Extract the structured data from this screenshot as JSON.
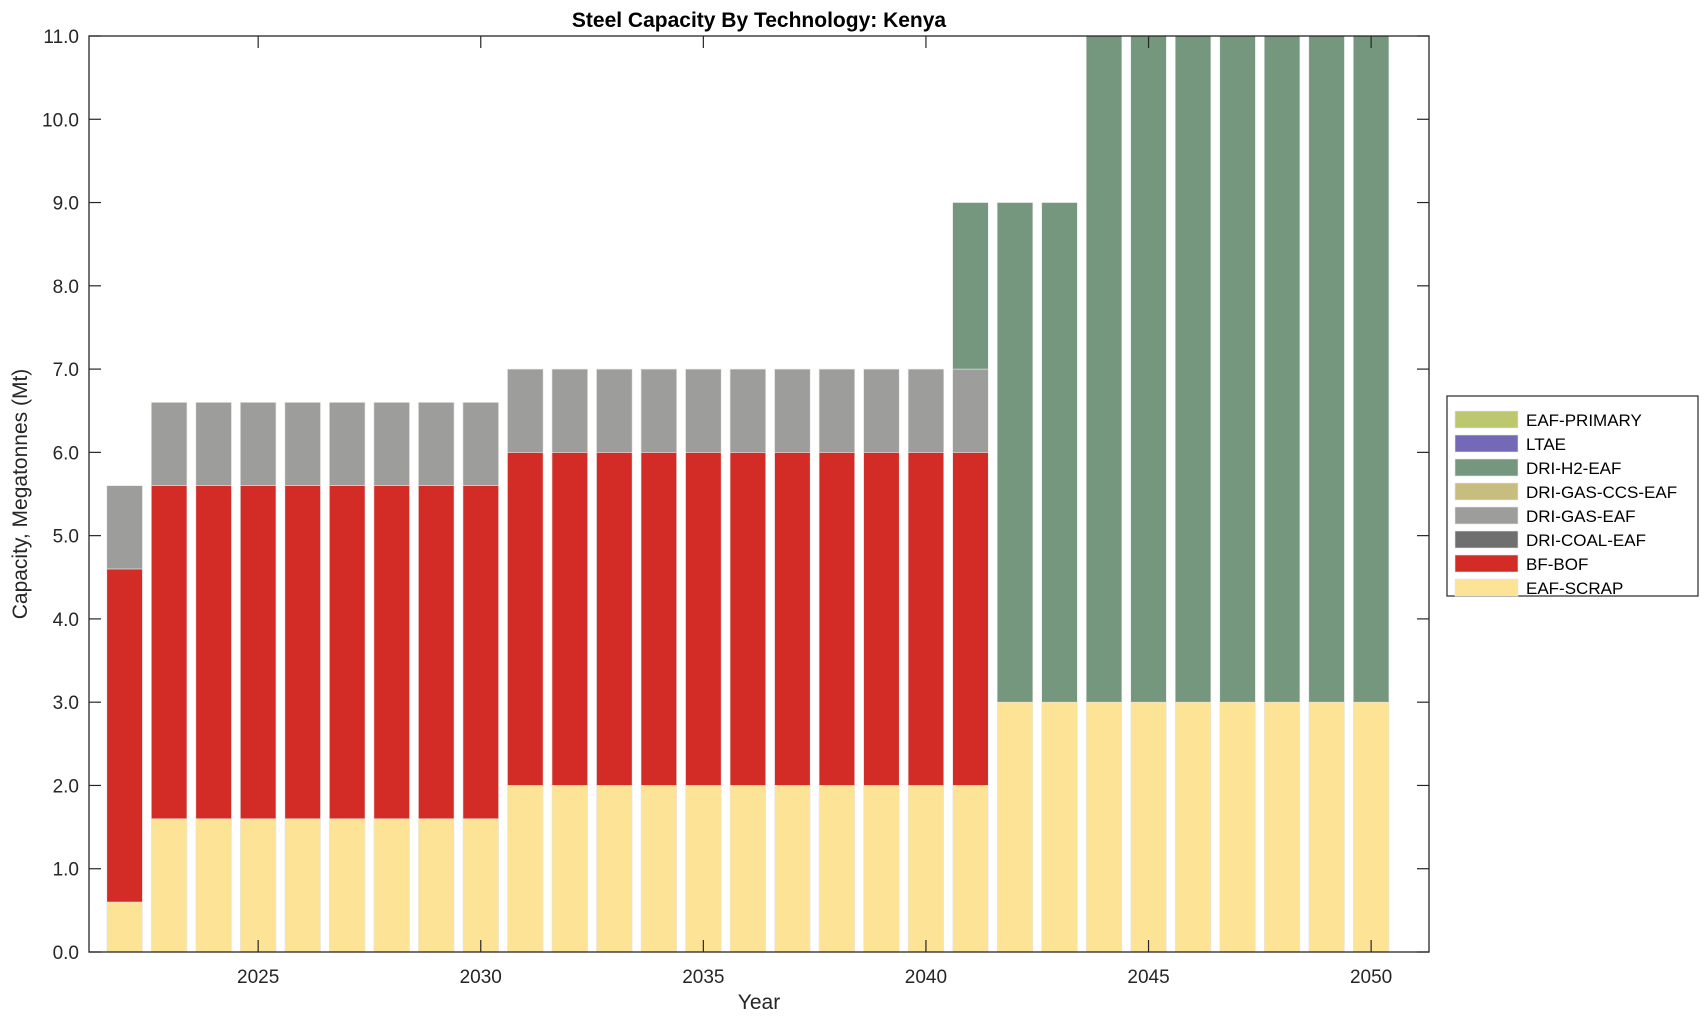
{
  "chart_data": {
    "type": "bar",
    "stacked": true,
    "title": "Steel Capacity By Technology: Kenya",
    "xlabel": "Year",
    "ylabel": "Capacity, Megatonnes (Mt)",
    "ylim": [
      0,
      11
    ],
    "xlim": [
      2021.2,
      2051.3
    ],
    "yticks": [
      "0.0",
      "1.0",
      "2.0",
      "3.0",
      "4.0",
      "5.0",
      "6.0",
      "7.0",
      "8.0",
      "9.0",
      "10.0",
      "11.0"
    ],
    "xticks": [
      "2025",
      "2030",
      "2035",
      "2040",
      "2045",
      "2050"
    ],
    "grid": false,
    "legend_position": "right",
    "x": [
      2022,
      2023,
      2024,
      2025,
      2026,
      2027,
      2028,
      2029,
      2030,
      2031,
      2032,
      2033,
      2034,
      2035,
      2036,
      2037,
      2038,
      2039,
      2040,
      2041,
      2042,
      2043,
      2044,
      2045,
      2046,
      2047,
      2048,
      2049,
      2050
    ],
    "series": [
      {
        "name": "EAF-SCRAP",
        "color": "#FDE395",
        "values": [
          0.6,
          1.6,
          1.6,
          1.6,
          1.6,
          1.6,
          1.6,
          1.6,
          1.6,
          2,
          2,
          2,
          2,
          2,
          2,
          2,
          2,
          2,
          2,
          2,
          3,
          3,
          3,
          3,
          3,
          3,
          3,
          3,
          3
        ]
      },
      {
        "name": "BF-BOF",
        "color": "#D32B25",
        "values": [
          4,
          4,
          4,
          4,
          4,
          4,
          4,
          4,
          4,
          4,
          4,
          4,
          4,
          4,
          4,
          4,
          4,
          4,
          4,
          4,
          0,
          0,
          0,
          0,
          0,
          0,
          0,
          0,
          0
        ]
      },
      {
        "name": "DRI-COAL-EAF",
        "color": "#6F6F6F",
        "values": [
          0,
          0,
          0,
          0,
          0,
          0,
          0,
          0,
          0,
          0,
          0,
          0,
          0,
          0,
          0,
          0,
          0,
          0,
          0,
          0,
          0,
          0,
          0,
          0,
          0,
          0,
          0,
          0,
          0
        ]
      },
      {
        "name": "DRI-GAS-EAF",
        "color": "#9D9D9B",
        "values": [
          1,
          1,
          1,
          1,
          1,
          1,
          1,
          1,
          1,
          1,
          1,
          1,
          1,
          1,
          1,
          1,
          1,
          1,
          1,
          1,
          0,
          0,
          0,
          0,
          0,
          0,
          0,
          0,
          0
        ]
      },
      {
        "name": "DRI-GAS-CCS-EAF",
        "color": "#C6BD7E",
        "values": [
          0,
          0,
          0,
          0,
          0,
          0,
          0,
          0,
          0,
          0,
          0,
          0,
          0,
          0,
          0,
          0,
          0,
          0,
          0,
          0,
          0,
          0,
          0,
          0,
          0,
          0,
          0,
          0,
          0
        ]
      },
      {
        "name": "DRI-H2-EAF",
        "color": "#75977D",
        "values": [
          0,
          0,
          0,
          0,
          0,
          0,
          0,
          0,
          0,
          0,
          0,
          0,
          0,
          0,
          0,
          0,
          0,
          0,
          0,
          2,
          6,
          6,
          8,
          8,
          8,
          8,
          8,
          8,
          8
        ]
      },
      {
        "name": "LTAE",
        "color": "#7369B7",
        "values": [
          0,
          0,
          0,
          0,
          0,
          0,
          0,
          0,
          0,
          0,
          0,
          0,
          0,
          0,
          0,
          0,
          0,
          0,
          0,
          0,
          0,
          0,
          0,
          0,
          0,
          0,
          0,
          0,
          0
        ]
      },
      {
        "name": "EAF-PRIMARY",
        "color": "#BDC76D",
        "values": [
          0,
          0,
          0,
          0,
          0,
          0,
          0,
          0,
          0,
          0,
          0,
          0,
          0,
          0,
          0,
          0,
          0,
          0,
          0,
          0,
          0,
          0,
          0,
          0,
          0,
          0,
          0,
          0,
          0
        ]
      }
    ],
    "legend": [
      "EAF-PRIMARY",
      "LTAE",
      "DRI-H2-EAF",
      "DRI-GAS-CCS-EAF",
      "DRI-GAS-EAF",
      "DRI-COAL-EAF",
      "BF-BOF",
      "EAF-SCRAP"
    ]
  }
}
